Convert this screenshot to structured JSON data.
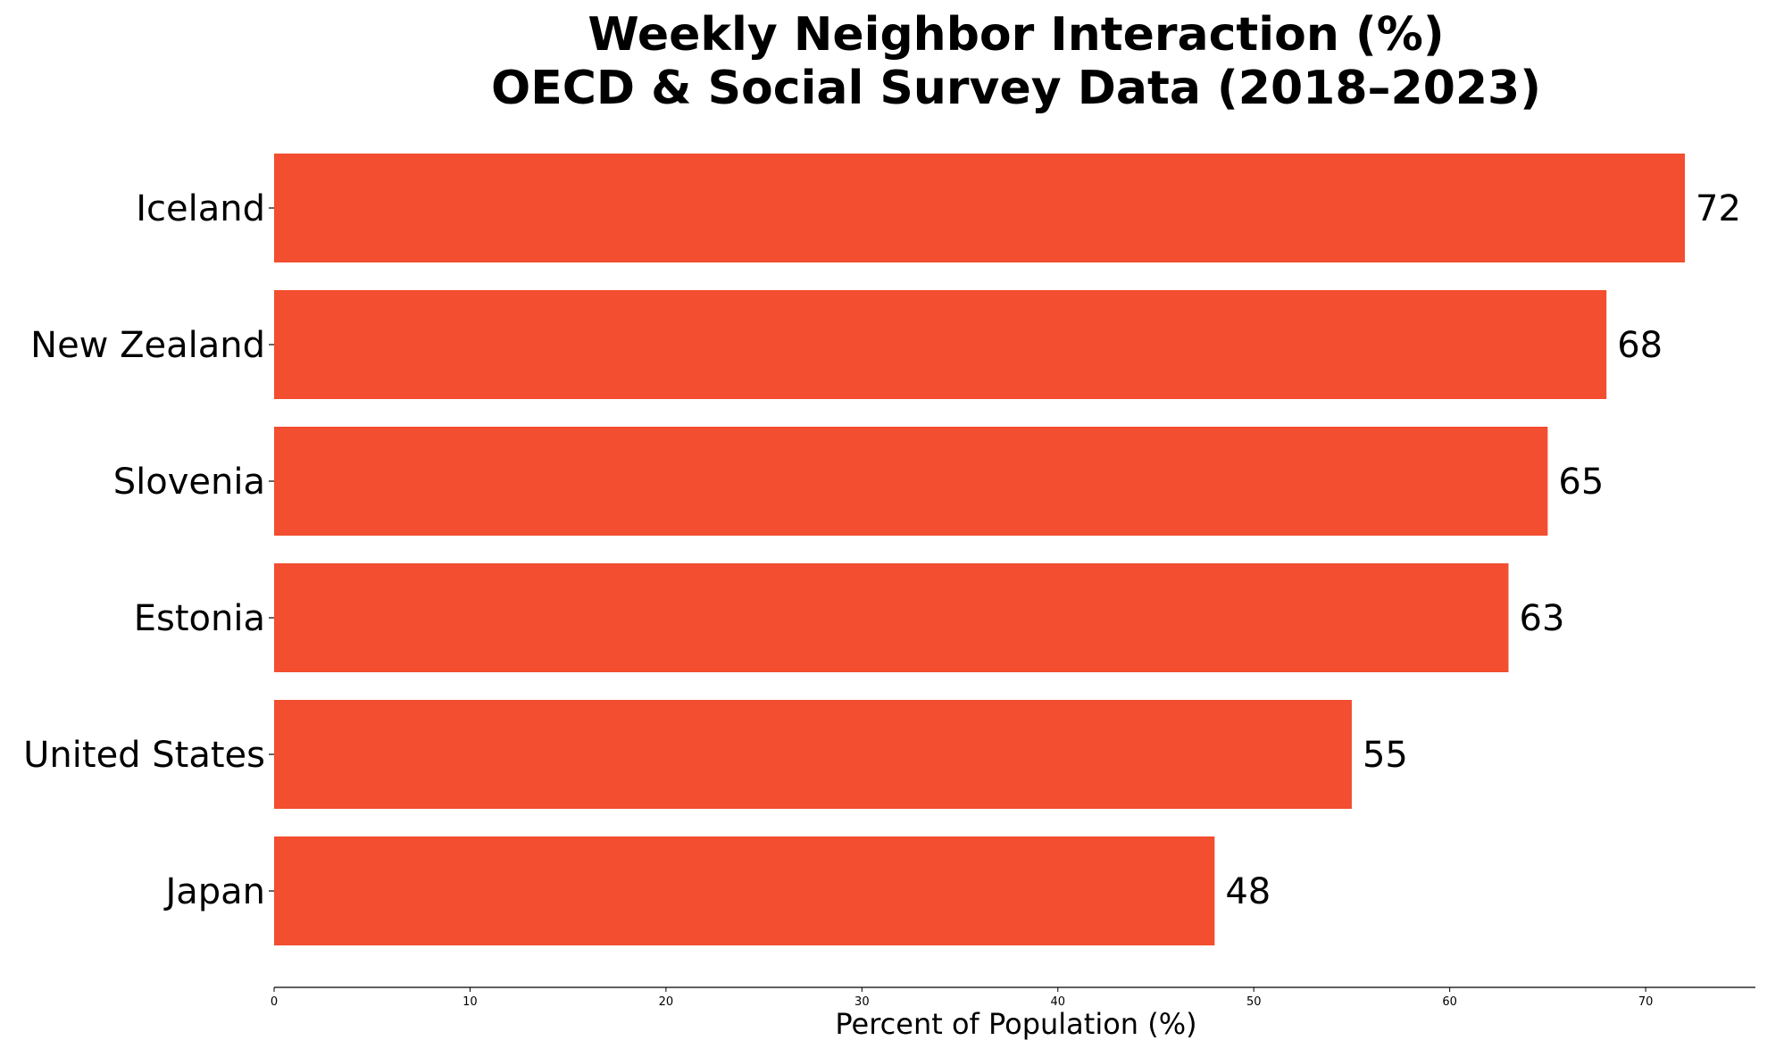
{
  "chart_data": {
    "type": "bar",
    "orientation": "horizontal",
    "title": "Weekly Neighbor Interaction (%)\nOECD & Social Survey Data (2018–2023)",
    "title_lines": [
      "Weekly Neighbor Interaction (%)",
      "OECD & Social Survey Data (2018–2023)"
    ],
    "categories": [
      "Iceland",
      "New Zealand",
      "Slovenia",
      "Estonia",
      "United States",
      "Japan"
    ],
    "values": [
      72,
      68,
      65,
      63,
      55,
      48
    ],
    "value_labels": [
      "72",
      "68",
      "65",
      "63",
      "55",
      "48"
    ],
    "xlabel": "Percent of Population (%)",
    "ylabel": "",
    "xlim": [
      0,
      75.6
    ],
    "xticks": [
      0,
      10,
      20,
      30,
      40,
      50,
      60,
      70
    ],
    "xtick_labels": [
      "0",
      "10",
      "20",
      "30",
      "40",
      "50",
      "60",
      "70"
    ],
    "grid": false,
    "legend": "none",
    "bar_color": "#F24E2F"
  }
}
